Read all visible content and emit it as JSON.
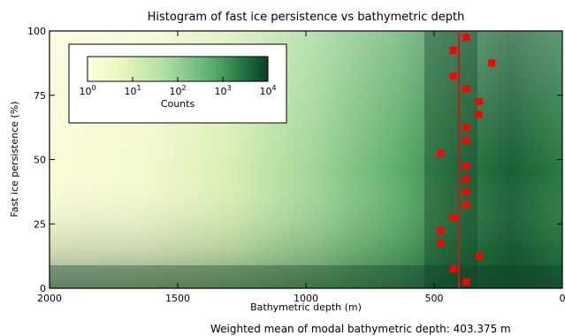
{
  "chart_data": {
    "type": "heatmap",
    "title": "Histogram of fast ice persistence vs bathymetric depth",
    "xlabel": "Bathymetric depth (m)",
    "ylabel": "Fast ice persistence (%)",
    "xlim": [
      2000,
      0
    ],
    "ylim": [
      0,
      100
    ],
    "xticks": [
      "2000",
      "1500",
      "1000",
      "500",
      "0"
    ],
    "xtick_values": [
      2000,
      1500,
      1000,
      500,
      0
    ],
    "yticks": [
      "0",
      "25",
      "50",
      "75",
      "100"
    ],
    "ytick_values": [
      0,
      25,
      50,
      75,
      100
    ],
    "colorbar": {
      "label": "Counts",
      "scale": "log",
      "ticks": [
        {
          "base": "10",
          "exp": "0"
        },
        {
          "base": "10",
          "exp": "1"
        },
        {
          "base": "10",
          "exp": "2"
        },
        {
          "base": "10",
          "exp": "3"
        },
        {
          "base": "10",
          "exp": "4"
        }
      ],
      "range": [
        1,
        10000
      ],
      "colors": [
        "#ffffe0",
        "#d9efb1",
        "#9ed59a",
        "#50a868",
        "#1e6b3c",
        "#0b3d22"
      ]
    },
    "weighted_mean_line": {
      "x": 403.375,
      "color": "#b22222"
    },
    "modal_points": [
      {
        "x": 375,
        "y": 97.5
      },
      {
        "x": 425,
        "y": 92.5
      },
      {
        "x": 275,
        "y": 87.5
      },
      {
        "x": 425,
        "y": 82.5
      },
      {
        "x": 375,
        "y": 77.5
      },
      {
        "x": 325,
        "y": 72.5
      },
      {
        "x": 325,
        "y": 67.5
      },
      {
        "x": 375,
        "y": 62.5
      },
      {
        "x": 375,
        "y": 57.5
      },
      {
        "x": 475,
        "y": 52.5
      },
      {
        "x": 375,
        "y": 47.5
      },
      {
        "x": 375,
        "y": 42.5
      },
      {
        "x": 375,
        "y": 37.5
      },
      {
        "x": 375,
        "y": 32.5
      },
      {
        "x": 425,
        "y": 27.5
      },
      {
        "x": 475,
        "y": 22.5
      },
      {
        "x": 475,
        "y": 17.5
      },
      {
        "x": 325,
        "y": 12.5
      },
      {
        "x": 425,
        "y": 7.5
      },
      {
        "x": 375,
        "y": 2.5
      }
    ],
    "marker_color": "#ff0000",
    "legend_placement": "top-left",
    "grid": false
  },
  "footer": {
    "text": "Weighted mean of modal bathymetric depth: 403.375 m"
  }
}
